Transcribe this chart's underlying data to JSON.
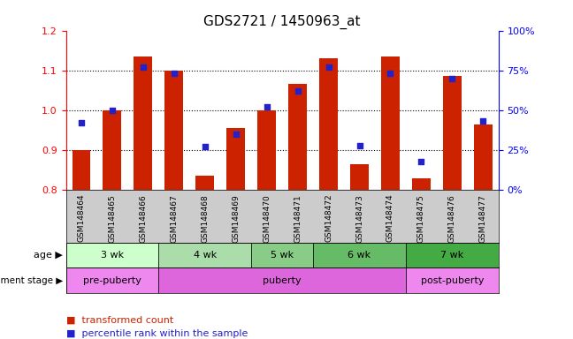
{
  "title": "GDS2721 / 1450963_at",
  "samples": [
    "GSM148464",
    "GSM148465",
    "GSM148466",
    "GSM148467",
    "GSM148468",
    "GSM148469",
    "GSM148470",
    "GSM148471",
    "GSM148472",
    "GSM148473",
    "GSM148474",
    "GSM148475",
    "GSM148476",
    "GSM148477"
  ],
  "transformed_count": [
    0.9,
    1.0,
    1.135,
    1.1,
    0.835,
    0.955,
    1.0,
    1.065,
    1.13,
    0.865,
    1.135,
    0.83,
    1.085,
    0.965
  ],
  "percentile_rank": [
    0.42,
    0.5,
    0.77,
    0.73,
    0.27,
    0.35,
    0.52,
    0.62,
    0.77,
    0.28,
    0.73,
    0.18,
    0.7,
    0.43
  ],
  "bar_bottom": 0.8,
  "ylim_left": [
    0.8,
    1.2
  ],
  "ylim_right": [
    0.0,
    1.0
  ],
  "yticks_left": [
    0.8,
    0.9,
    1.0,
    1.1,
    1.2
  ],
  "yticks_right": [
    0.0,
    0.25,
    0.5,
    0.75,
    1.0
  ],
  "ytick_labels_right": [
    "0%",
    "25%",
    "50%",
    "75%",
    "100%"
  ],
  "bar_color": "#cc2200",
  "dot_color": "#2222cc",
  "age_groups": [
    {
      "label": "3 wk",
      "start": 0,
      "end": 3,
      "color": "#ccffcc"
    },
    {
      "label": "4 wk",
      "start": 3,
      "end": 6,
      "color": "#aaddaa"
    },
    {
      "label": "5 wk",
      "start": 6,
      "end": 8,
      "color": "#88cc88"
    },
    {
      "label": "6 wk",
      "start": 8,
      "end": 11,
      "color": "#66bb66"
    },
    {
      "label": "7 wk",
      "start": 11,
      "end": 14,
      "color": "#44aa44"
    }
  ],
  "dev_groups": [
    {
      "label": "pre-puberty",
      "start": 0,
      "end": 3,
      "color": "#ee88ee"
    },
    {
      "label": "puberty",
      "start": 3,
      "end": 11,
      "color": "#dd66dd"
    },
    {
      "label": "post-puberty",
      "start": 11,
      "end": 14,
      "color": "#ee88ee"
    }
  ],
  "age_label": "age",
  "dev_label": "development stage",
  "legend_bar": "transformed count",
  "legend_dot": "percentile rank within the sample",
  "bar_width": 0.6,
  "dot_size": 25,
  "tick_fontsize": 8,
  "title_fontsize": 11
}
